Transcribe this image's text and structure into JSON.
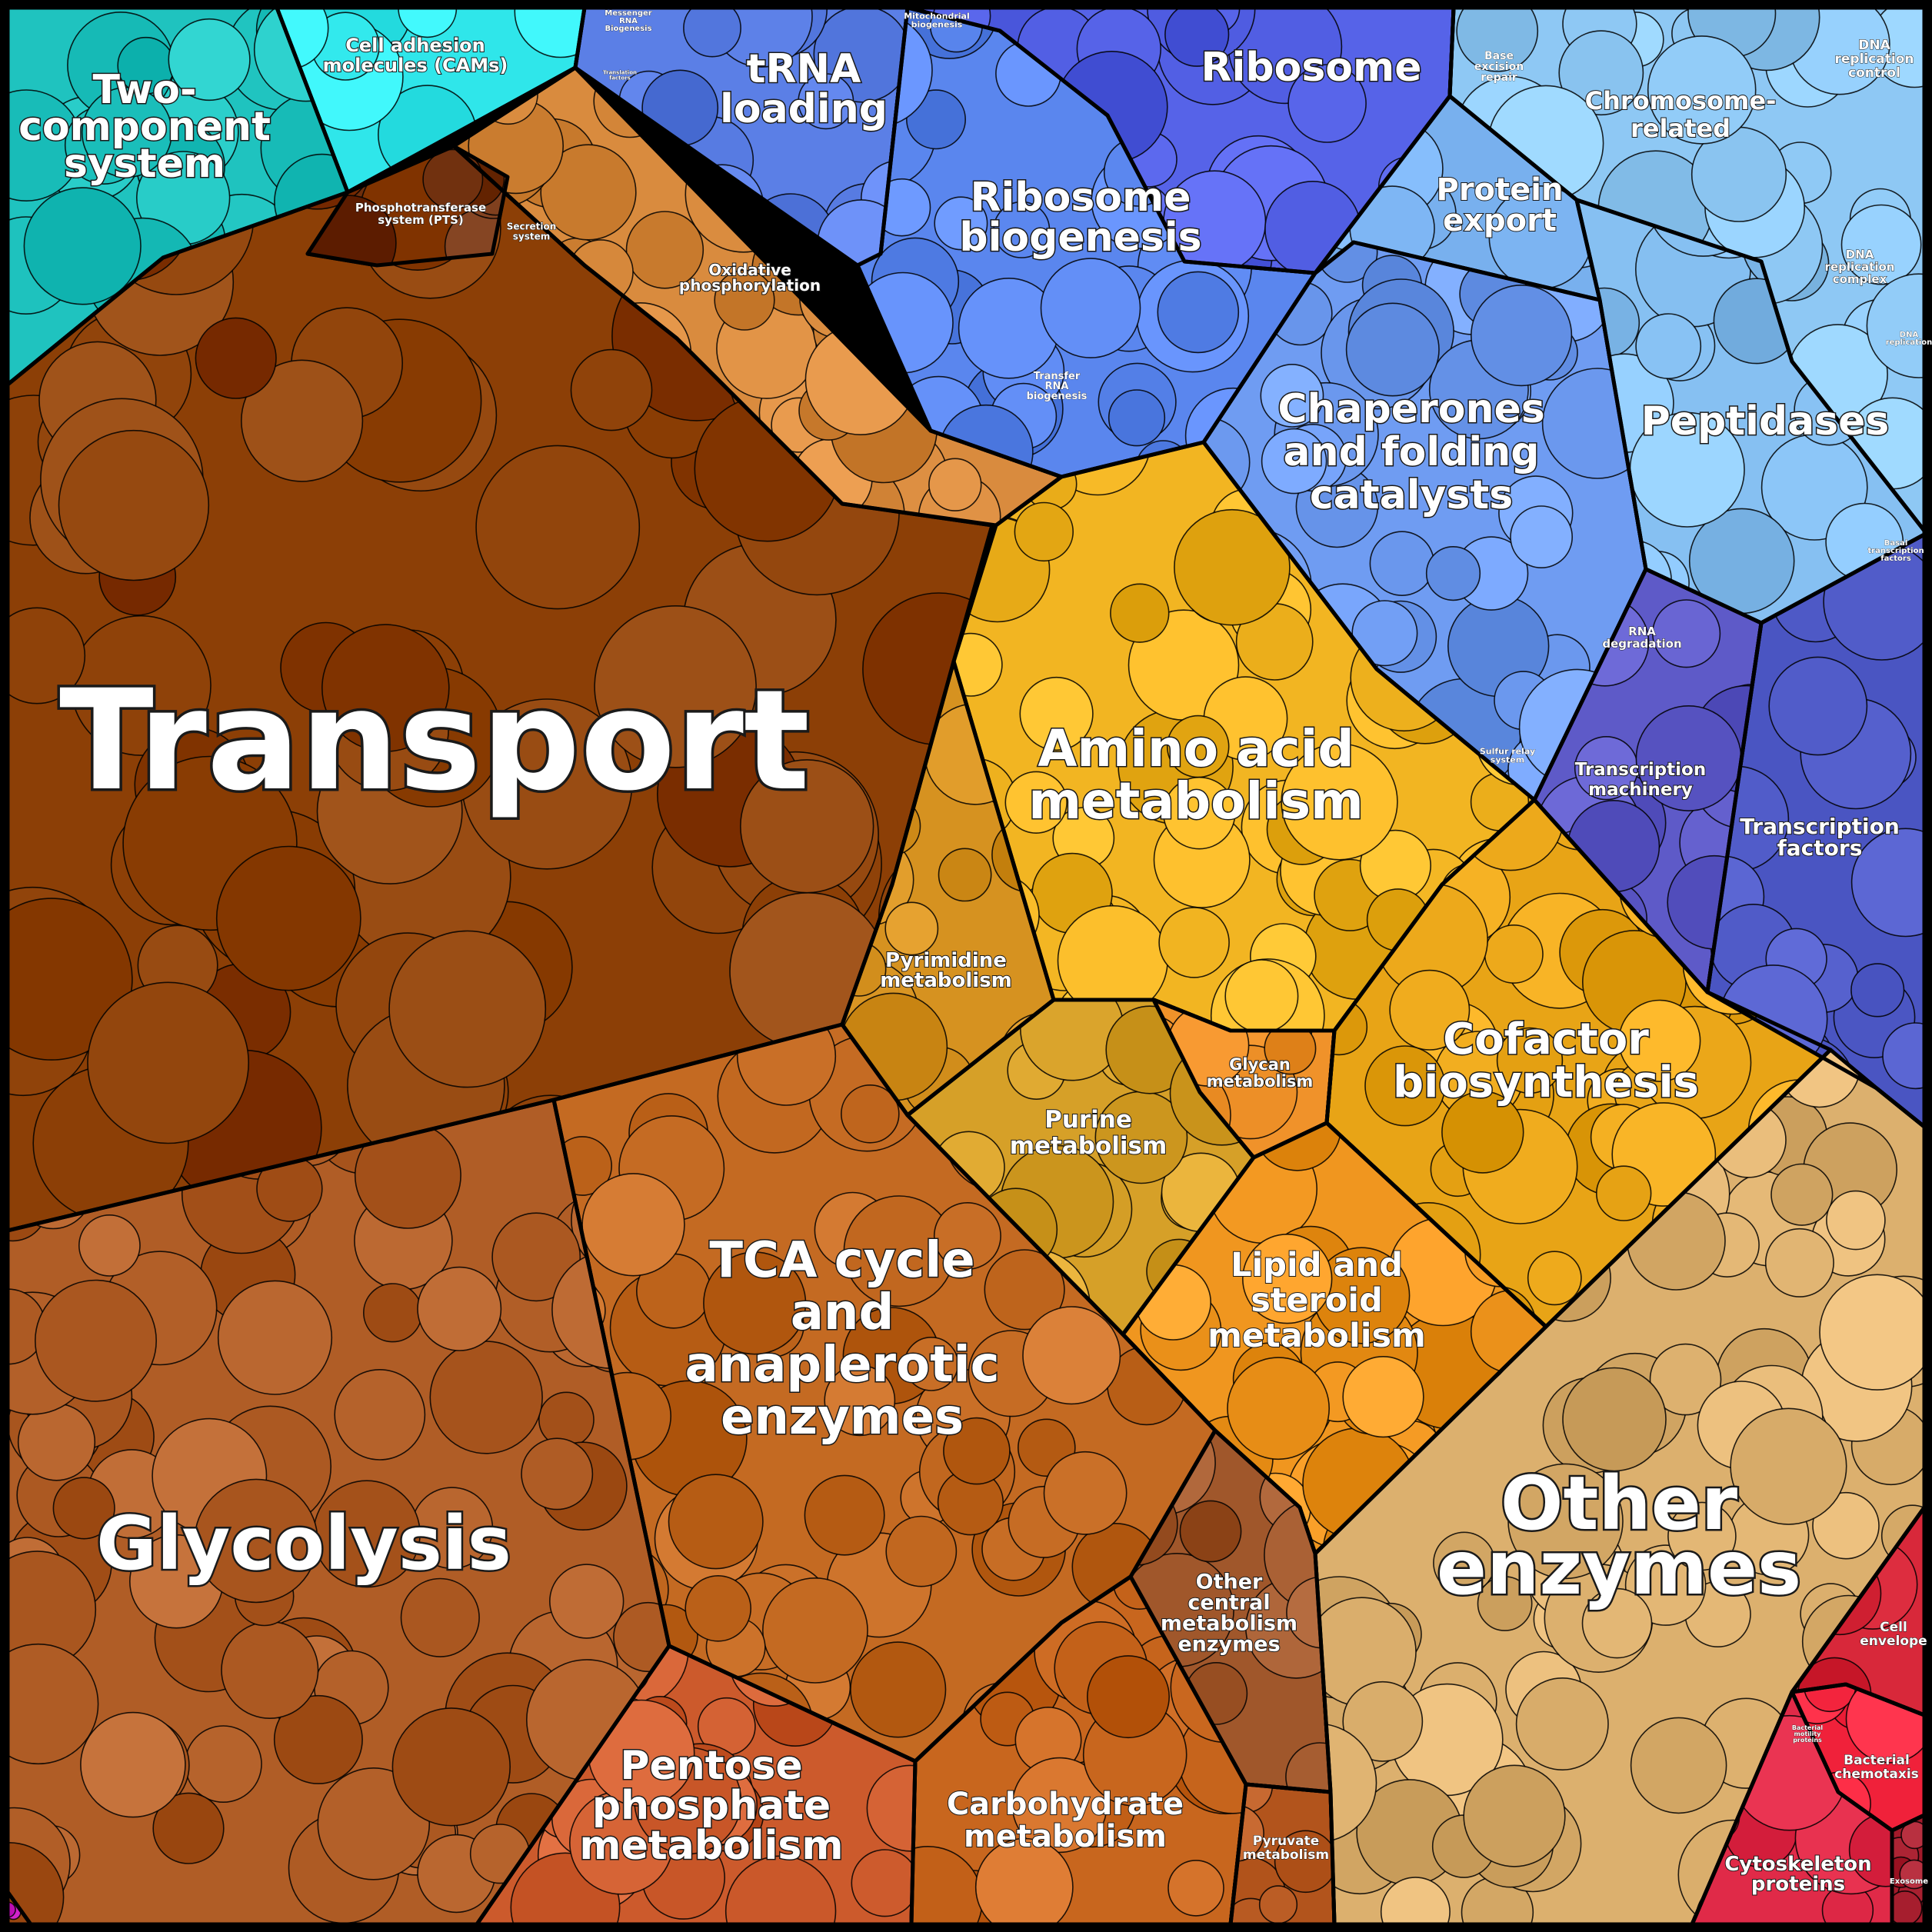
{
  "diagram": {
    "type": "voronoi-proteomap",
    "categories": [
      {
        "key": "two_component",
        "label": "Two-\ncomponent\nsystem",
        "color": "#1fc3bf"
      },
      {
        "key": "cams",
        "label": "Cell adhesion\nmolecules (CAMs)",
        "color": "#2fe6ea"
      },
      {
        "key": "trna_loading",
        "label": "tRNA\nloading",
        "color": "#5b7fe6"
      },
      {
        "key": "ribosome",
        "label": "Ribosome",
        "color": "#5663e8"
      },
      {
        "key": "ribosome_biogenesis",
        "label": "Ribosome\nbiogenesis",
        "color": "#5a86ee"
      },
      {
        "key": "chromosome",
        "label": "Chromosome-\nrelated",
        "color": "#8ec8f4"
      },
      {
        "key": "protein_export",
        "label": "Protein\nexport",
        "color": "#78b0ee"
      },
      {
        "key": "chaperones",
        "label": "Chaperones\nand folding\ncatalysts",
        "color": "#6f9cf2"
      },
      {
        "key": "peptidases",
        "label": "Peptidases",
        "color": "#86c0f2"
      },
      {
        "key": "transcription_machinery",
        "label": "Transcription\nmachinery",
        "color": "#5e5ac8"
      },
      {
        "key": "transcription_factors",
        "label": "Transcription\nfactors",
        "color": "#4a55c2"
      },
      {
        "key": "transport",
        "label": "Transport",
        "color": "#8c3f06"
      },
      {
        "key": "oxphos",
        "label": "Oxidative\nphosphorylation",
        "color": "#d98b3e"
      },
      {
        "key": "amino_acid",
        "label": "Amino acid\nmetabolism",
        "color": "#f2b522"
      },
      {
        "key": "pyrimidine",
        "label": "Pyrimidine\nmetabolism",
        "color": "#d69220"
      },
      {
        "key": "purine",
        "label": "Purine\nmetabolism",
        "color": "#d6a028"
      },
      {
        "key": "glycan",
        "label": "Glycan\nmetabolism",
        "color": "#f0922a"
      },
      {
        "key": "cofactor",
        "label": "Cofactor\nbiosynthesis",
        "color": "#e8a416"
      },
      {
        "key": "lipid",
        "label": "Lipid and\nsteroid\nmetabolism",
        "color": "#f0961f"
      },
      {
        "key": "tca",
        "label": "TCA cycle\nand\nanaplerotic\nenzymes",
        "color": "#c46a22"
      },
      {
        "key": "glycolysis",
        "label": "Glycolysis",
        "color": "#b05d26"
      },
      {
        "key": "other_central",
        "label": "Other\ncentral\nmetabolism\nenzymes",
        "color": "#a0572b"
      },
      {
        "key": "pentose",
        "label": "Pentose\nphosphate\nmetabolism",
        "color": "#cc5a2c"
      },
      {
        "key": "carbohydrate",
        "label": "Carbohydrate\nmetabolism",
        "color": "#c8661e"
      },
      {
        "key": "pyruvate",
        "label": "Pyruvate\nmetabolism",
        "color": "#b2541c"
      },
      {
        "key": "other_enzymes",
        "label": "Other\nenzymes",
        "color": "#dcb06e"
      },
      {
        "key": "cell_envelope",
        "label": "Cell\nenvelope",
        "color": "#d8283a"
      },
      {
        "key": "chemotaxis",
        "label": "Bacterial\nchemotaxis",
        "color": "#f0213a"
      },
      {
        "key": "cytoskeleton",
        "label": "Cytoskeleton\nproteins",
        "color": "#e02a48"
      }
    ],
    "small_labels": {
      "pts": "Phosphotransferase\nsystem (PTS)",
      "secretion": "Secretion\nsystem",
      "messenger_rna": "Messenger\nRNA\nBiogenesis",
      "mitochondrial": "Mitochondrial\nbiogenesis",
      "translation_factors": "Translation\nfactors",
      "transfer_rna": "Transfer\nRNA\nbiogenesis",
      "base_excision": "Base\nexcision\nrepair",
      "dna_replication_control": "DNA\nreplication\ncontrol",
      "dna_replication_complex": "DNA\nreplication\ncomplex",
      "dna_replication": "DNA\nreplication",
      "rna_degradation": "RNA\ndegradation",
      "sulfur_relay": "Sulfur relay\nsystem",
      "basal_tf": "Basal\ntranscription\nfactors",
      "bacterial_motility": "Bacterial\nmotility\nproteins",
      "exosome": "Exosome"
    }
  }
}
